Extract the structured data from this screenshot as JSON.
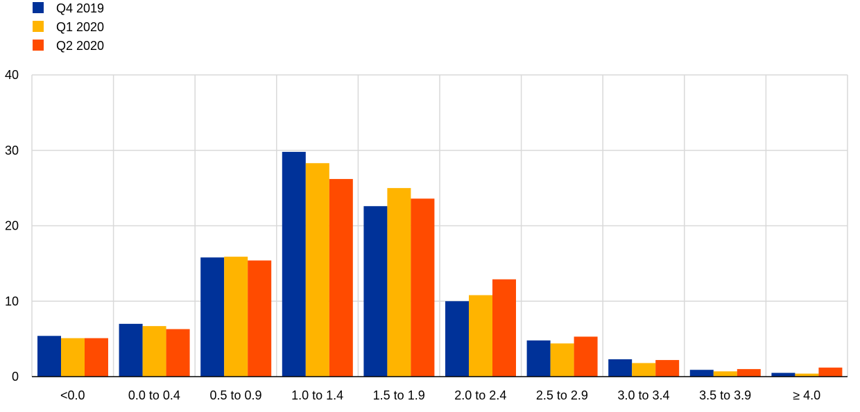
{
  "chart_data": {
    "type": "bar",
    "categories": [
      "<0.0",
      "0.0 to 0.4",
      "0.5 to 0.9",
      "1.0 to 1.4",
      "1.5 to 1.9",
      "2.0 to 2.4",
      "2.5 to 2.9",
      "3.0 to 3.4",
      "3.5 to 3.9",
      "≥ 4.0"
    ],
    "series": [
      {
        "name": "Q4 2019",
        "color": "#003299",
        "values": [
          5.4,
          7.0,
          15.8,
          29.8,
          22.6,
          10.0,
          4.8,
          2.3,
          0.9,
          0.5
        ]
      },
      {
        "name": "Q1 2020",
        "color": "#FFB400",
        "values": [
          5.1,
          6.7,
          15.9,
          28.3,
          25.0,
          10.8,
          4.4,
          1.8,
          0.7,
          0.4
        ]
      },
      {
        "name": "Q2 2020",
        "color": "#FF4B00",
        "values": [
          5.1,
          6.3,
          15.4,
          26.2,
          23.6,
          12.9,
          5.3,
          2.2,
          1.0,
          1.2
        ]
      }
    ],
    "ylim": [
      0,
      40
    ],
    "yticks": [
      "0",
      "10",
      "20",
      "30",
      "40"
    ],
    "title": "",
    "xlabel": "",
    "ylabel": "",
    "grid": true,
    "legend_position": "top-left"
  }
}
